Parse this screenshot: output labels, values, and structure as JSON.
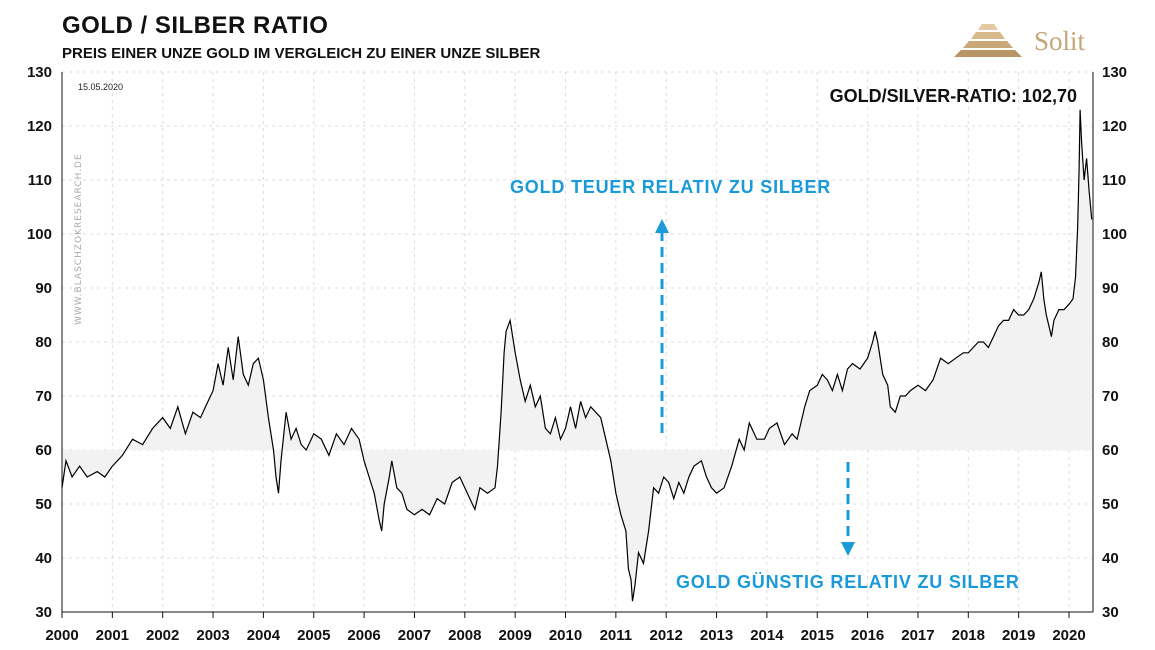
{
  "header": {
    "title": "GOLD  / SILBER RATIO",
    "subtitle": "PREIS EINER UNZE GOLD IM VERGLEICH ZU EINER UNZE SILBER"
  },
  "logo": {
    "text": "Solit",
    "color": "#c5a57a"
  },
  "date_stamp": "15.05.2020",
  "watermark": "WWW.BLASCHZOKRESEARCH.DE",
  "annotations": {
    "latest_value": "GOLD/SILVER-RATIO: 102,70",
    "upper": "GOLD  TEUER  RELATIV  ZU  SILBER",
    "lower": "GOLD  GÜNSTIG  RELATIV  ZU  SILBER"
  },
  "colors": {
    "line": "#000000",
    "fill": "#f2f2f2",
    "accent": "#1a9ad9",
    "grid": "#dddddd"
  },
  "chart_data": {
    "type": "line",
    "title": "GOLD  / SILBER RATIO",
    "subtitle": "PREIS EINER UNZE GOLD IM VERGLEICH ZU EINER UNZE SILBER",
    "xlabel": "",
    "ylabel": "",
    "xlim": [
      2000,
      2020.45
    ],
    "ylim": [
      30,
      130
    ],
    "y_ticks": [
      30,
      40,
      50,
      60,
      70,
      80,
      90,
      100,
      110,
      120,
      130
    ],
    "x_ticks": [
      "2000",
      "2001",
      "2002",
      "2003",
      "2004",
      "2005",
      "2006",
      "2007",
      "2008",
      "2009",
      "2010",
      "2011",
      "2012",
      "2013",
      "2014",
      "2015",
      "2016",
      "2017",
      "2018",
      "2019",
      "2020"
    ],
    "baseline": 60,
    "grid": true,
    "series": [
      {
        "points": [
          [
            2000.0,
            53
          ],
          [
            2000.08,
            58
          ],
          [
            2000.2,
            55
          ],
          [
            2000.35,
            57
          ],
          [
            2000.5,
            55
          ],
          [
            2000.7,
            56
          ],
          [
            2000.85,
            55
          ],
          [
            2001.0,
            57
          ],
          [
            2001.2,
            59
          ],
          [
            2001.4,
            62
          ],
          [
            2001.6,
            61
          ],
          [
            2001.8,
            64
          ],
          [
            2002.0,
            66
          ],
          [
            2002.15,
            64
          ],
          [
            2002.3,
            68
          ],
          [
            2002.45,
            63
          ],
          [
            2002.6,
            67
          ],
          [
            2002.75,
            66
          ],
          [
            2002.9,
            69
          ],
          [
            2003.0,
            71
          ],
          [
            2003.1,
            76
          ],
          [
            2003.2,
            72
          ],
          [
            2003.3,
            79
          ],
          [
            2003.4,
            73
          ],
          [
            2003.5,
            81
          ],
          [
            2003.6,
            74
          ],
          [
            2003.7,
            72
          ],
          [
            2003.8,
            76
          ],
          [
            2003.9,
            77
          ],
          [
            2004.0,
            73
          ],
          [
            2004.1,
            66
          ],
          [
            2004.2,
            60
          ],
          [
            2004.25,
            55
          ],
          [
            2004.3,
            52
          ],
          [
            2004.35,
            58
          ],
          [
            2004.45,
            67
          ],
          [
            2004.55,
            62
          ],
          [
            2004.65,
            64
          ],
          [
            2004.75,
            61
          ],
          [
            2004.85,
            60
          ],
          [
            2005.0,
            63
          ],
          [
            2005.15,
            62
          ],
          [
            2005.3,
            59
          ],
          [
            2005.45,
            63
          ],
          [
            2005.6,
            61
          ],
          [
            2005.75,
            64
          ],
          [
            2005.9,
            62
          ],
          [
            2006.0,
            58
          ],
          [
            2006.1,
            55
          ],
          [
            2006.2,
            52
          ],
          [
            2006.3,
            47
          ],
          [
            2006.35,
            45
          ],
          [
            2006.4,
            50
          ],
          [
            2006.5,
            55
          ],
          [
            2006.55,
            58
          ],
          [
            2006.65,
            53
          ],
          [
            2006.75,
            52
          ],
          [
            2006.85,
            49
          ],
          [
            2007.0,
            48
          ],
          [
            2007.15,
            49
          ],
          [
            2007.3,
            48
          ],
          [
            2007.45,
            51
          ],
          [
            2007.6,
            50
          ],
          [
            2007.75,
            54
          ],
          [
            2007.9,
            55
          ],
          [
            2008.0,
            53
          ],
          [
            2008.1,
            51
          ],
          [
            2008.2,
            49
          ],
          [
            2008.3,
            53
          ],
          [
            2008.45,
            52
          ],
          [
            2008.6,
            53
          ],
          [
            2008.65,
            57
          ],
          [
            2008.72,
            67
          ],
          [
            2008.78,
            78
          ],
          [
            2008.82,
            82
          ],
          [
            2008.9,
            84
          ],
          [
            2009.0,
            78
          ],
          [
            2009.1,
            73
          ],
          [
            2009.2,
            69
          ],
          [
            2009.3,
            72
          ],
          [
            2009.4,
            68
          ],
          [
            2009.5,
            70
          ],
          [
            2009.6,
            64
          ],
          [
            2009.7,
            63
          ],
          [
            2009.8,
            66
          ],
          [
            2009.9,
            62
          ],
          [
            2010.0,
            64
          ],
          [
            2010.1,
            68
          ],
          [
            2010.2,
            64
          ],
          [
            2010.3,
            69
          ],
          [
            2010.4,
            66
          ],
          [
            2010.5,
            68
          ],
          [
            2010.6,
            67
          ],
          [
            2010.7,
            66
          ],
          [
            2010.8,
            62
          ],
          [
            2010.9,
            58
          ],
          [
            2011.0,
            52
          ],
          [
            2011.1,
            48
          ],
          [
            2011.2,
            45
          ],
          [
            2011.25,
            38
          ],
          [
            2011.3,
            36
          ],
          [
            2011.33,
            32
          ],
          [
            2011.38,
            35
          ],
          [
            2011.45,
            41
          ],
          [
            2011.55,
            39
          ],
          [
            2011.65,
            45
          ],
          [
            2011.75,
            53
          ],
          [
            2011.85,
            52
          ],
          [
            2011.95,
            55
          ],
          [
            2012.05,
            54
          ],
          [
            2012.15,
            51
          ],
          [
            2012.25,
            54
          ],
          [
            2012.35,
            52
          ],
          [
            2012.45,
            55
          ],
          [
            2012.55,
            57
          ],
          [
            2012.7,
            58
          ],
          [
            2012.8,
            55
          ],
          [
            2012.9,
            53
          ],
          [
            2013.0,
            52
          ],
          [
            2013.15,
            53
          ],
          [
            2013.3,
            57
          ],
          [
            2013.45,
            62
          ],
          [
            2013.55,
            60
          ],
          [
            2013.65,
            65
          ],
          [
            2013.8,
            62
          ],
          [
            2013.95,
            62
          ],
          [
            2014.05,
            64
          ],
          [
            2014.2,
            65
          ],
          [
            2014.35,
            61
          ],
          [
            2014.5,
            63
          ],
          [
            2014.6,
            62
          ],
          [
            2014.75,
            68
          ],
          [
            2014.85,
            71
          ],
          [
            2015.0,
            72
          ],
          [
            2015.1,
            74
          ],
          [
            2015.2,
            73
          ],
          [
            2015.3,
            71
          ],
          [
            2015.4,
            74
          ],
          [
            2015.5,
            71
          ],
          [
            2015.6,
            75
          ],
          [
            2015.7,
            76
          ],
          [
            2015.85,
            75
          ],
          [
            2016.0,
            77
          ],
          [
            2016.1,
            80
          ],
          [
            2016.15,
            82
          ],
          [
            2016.2,
            80
          ],
          [
            2016.3,
            74
          ],
          [
            2016.4,
            72
          ],
          [
            2016.45,
            68
          ],
          [
            2016.55,
            67
          ],
          [
            2016.65,
            70
          ],
          [
            2016.75,
            70
          ],
          [
            2016.85,
            71
          ],
          [
            2017.0,
            72
          ],
          [
            2017.15,
            71
          ],
          [
            2017.3,
            73
          ],
          [
            2017.45,
            77
          ],
          [
            2017.6,
            76
          ],
          [
            2017.75,
            77
          ],
          [
            2017.9,
            78
          ],
          [
            2018.0,
            78
          ],
          [
            2018.1,
            79
          ],
          [
            2018.2,
            80
          ],
          [
            2018.3,
            80
          ],
          [
            2018.4,
            79
          ],
          [
            2018.5,
            81
          ],
          [
            2018.6,
            83
          ],
          [
            2018.7,
            84
          ],
          [
            2018.8,
            84
          ],
          [
            2018.9,
            86
          ],
          [
            2019.0,
            85
          ],
          [
            2019.1,
            85
          ],
          [
            2019.2,
            86
          ],
          [
            2019.3,
            88
          ],
          [
            2019.4,
            91
          ],
          [
            2019.45,
            93
          ],
          [
            2019.5,
            88
          ],
          [
            2019.55,
            85
          ],
          [
            2019.6,
            83
          ],
          [
            2019.65,
            81
          ],
          [
            2019.7,
            84
          ],
          [
            2019.8,
            86
          ],
          [
            2019.9,
            86
          ],
          [
            2020.0,
            87
          ],
          [
            2020.08,
            88
          ],
          [
            2020.13,
            92
          ],
          [
            2020.17,
            101
          ],
          [
            2020.2,
            112
          ],
          [
            2020.22,
            123
          ],
          [
            2020.25,
            117
          ],
          [
            2020.3,
            110
          ],
          [
            2020.35,
            114
          ],
          [
            2020.4,
            108
          ],
          [
            2020.42,
            106
          ],
          [
            2020.45,
            102.7
          ]
        ]
      }
    ]
  }
}
